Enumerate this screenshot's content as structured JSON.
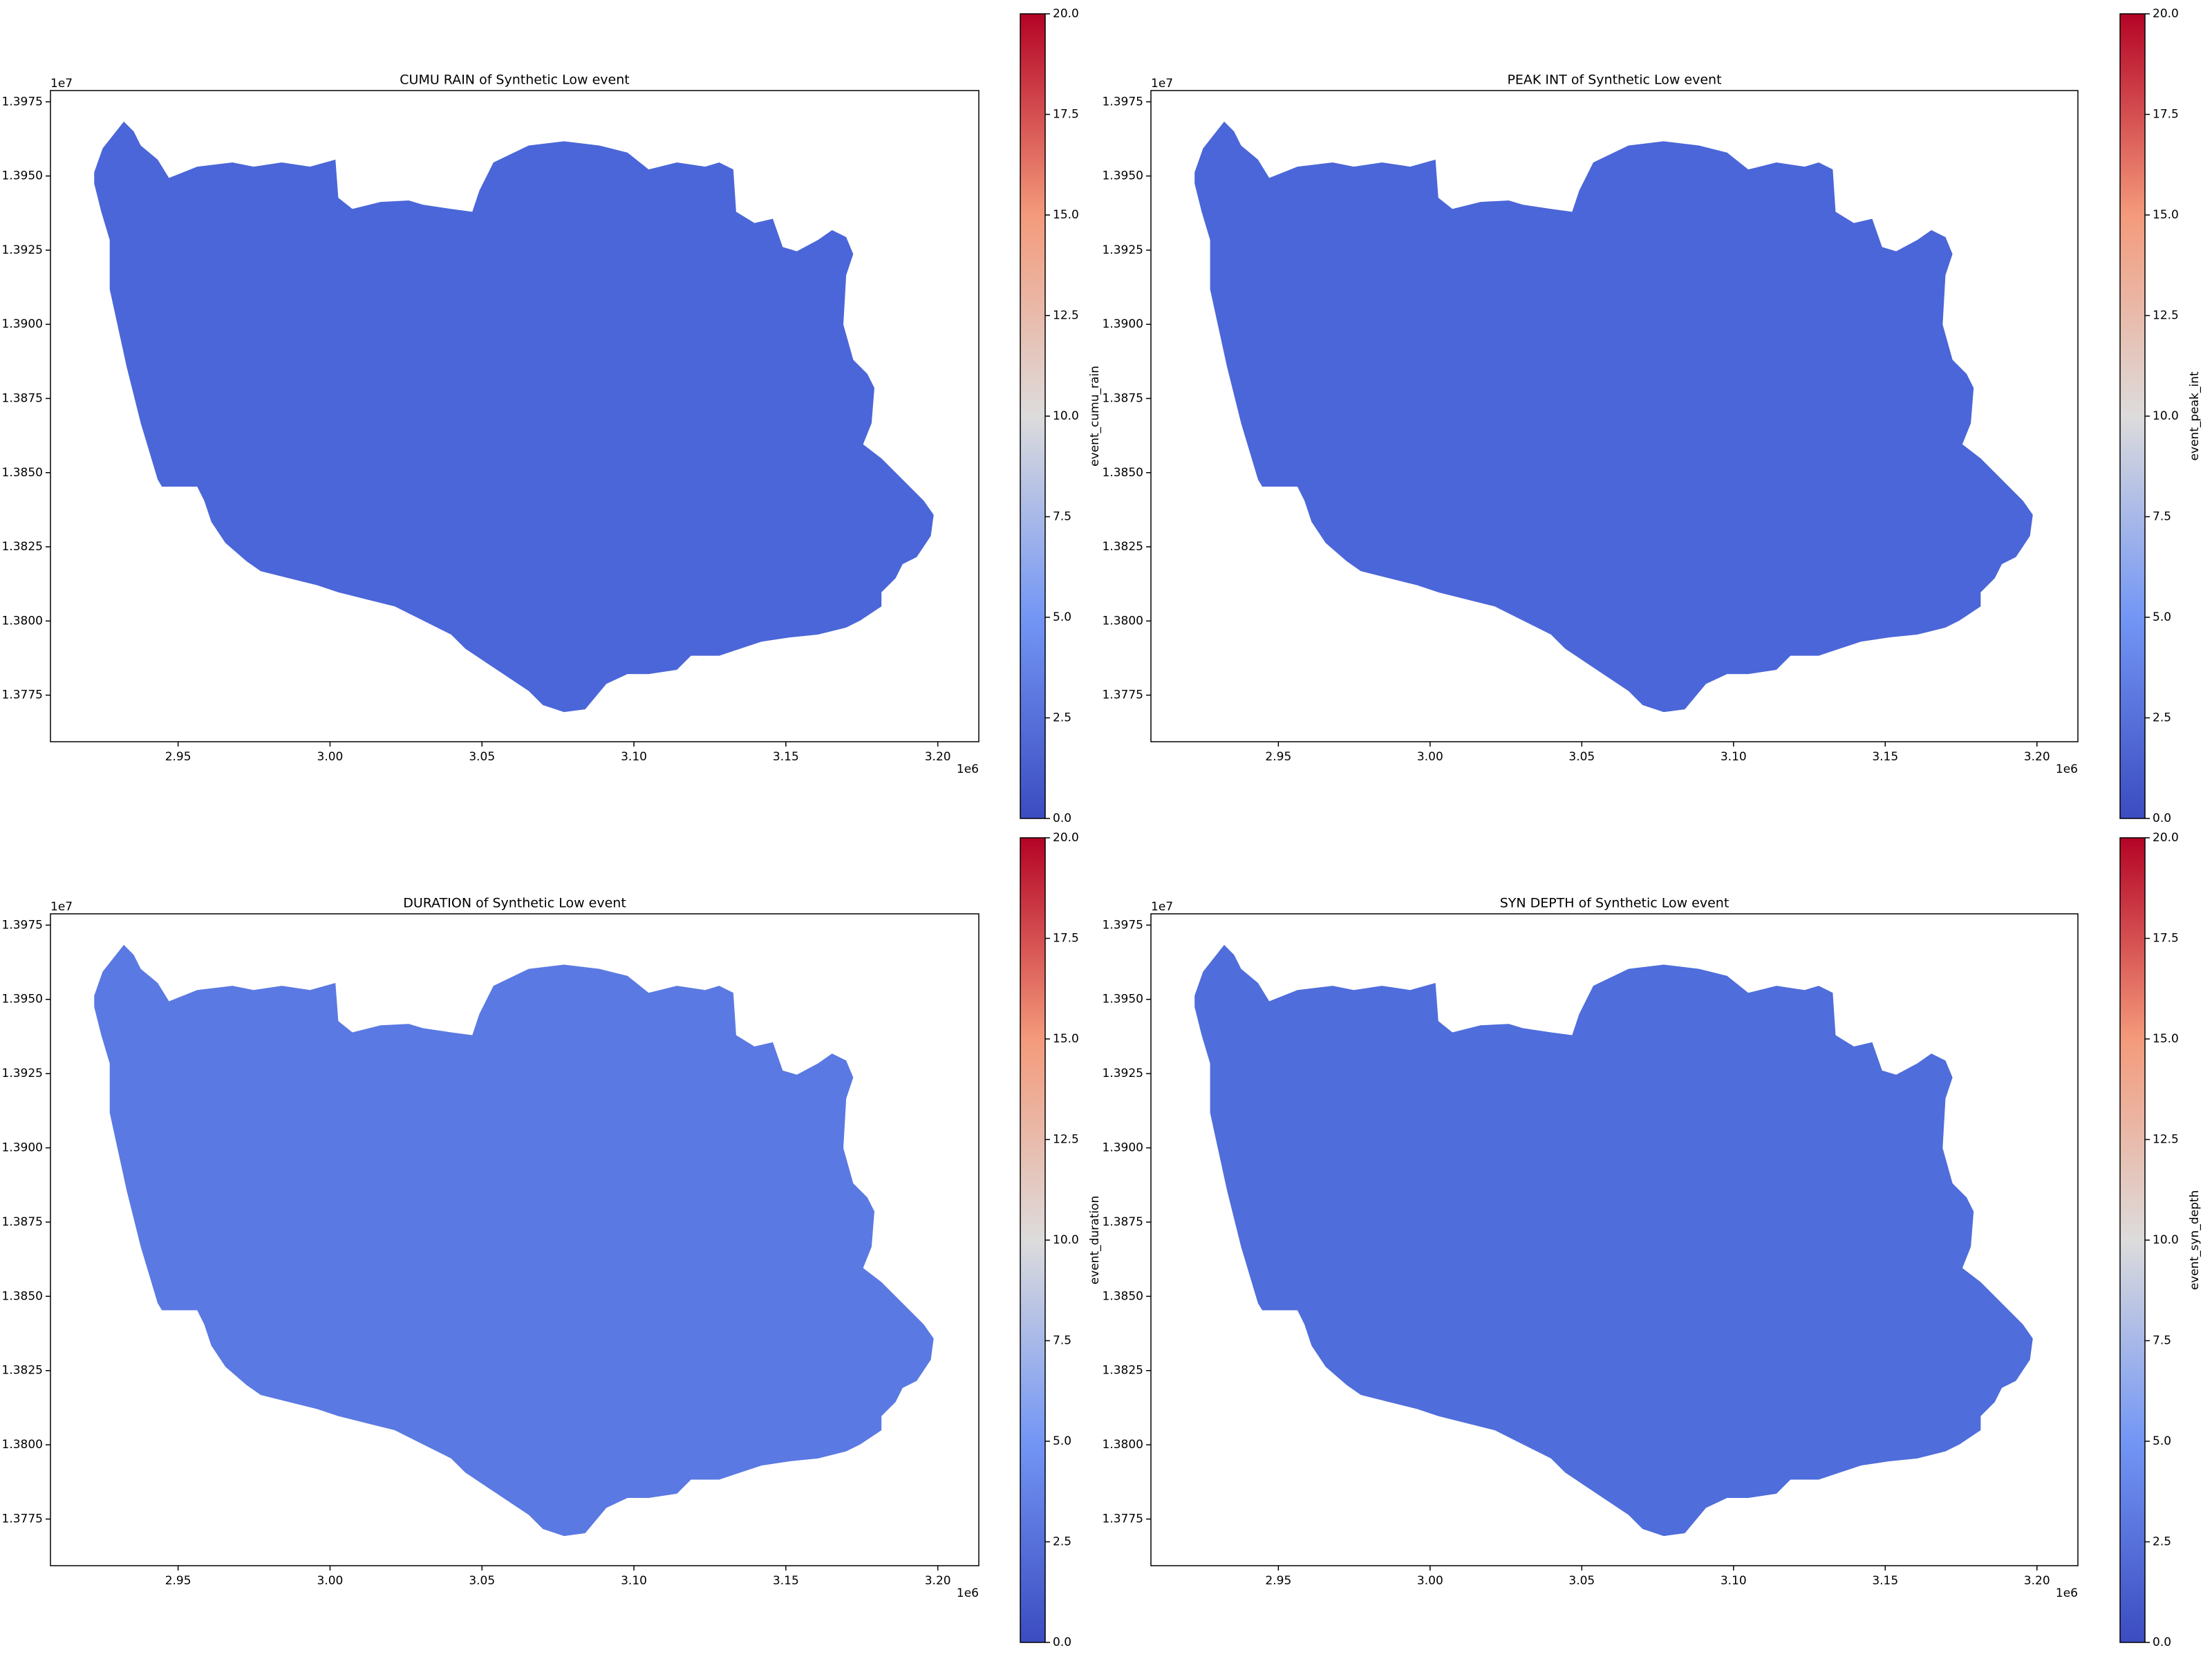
{
  "chart_data": [
    {
      "type": "map",
      "title": "CUMU RAIN of Synthetic Low event",
      "color": "#4b66d8",
      "xlim": [
        2.908,
        3.2135
      ],
      "ylim": [
        1.37593,
        1.39788
      ],
      "xticks": [
        2.95,
        {
          "value": 3,
          "label": "3.00"
        },
        3.05,
        {
          "value": 3.1,
          "label": "3.10"
        },
        3.15,
        {
          "value": 3.2,
          "label": "3.20"
        }
      ],
      "yticks": [
        1.3775,
        {
          "value": 1.38,
          "label": "1.3800"
        },
        1.3825,
        {
          "value": 1.385,
          "label": "1.3850"
        },
        1.3875,
        {
          "value": 1.39,
          "label": "1.3900"
        },
        1.3925,
        {
          "value": 1.395,
          "label": "1.3950"
        },
        1.3975
      ],
      "x_offset": "1e6",
      "y_offset": "1e7",
      "colorbar": {
        "label": "event_cumu_rain",
        "lim": [
          0,
          20
        ],
        "ticks": [
          {
            "value": 0,
            "label": "0.0"
          },
          2.5,
          {
            "value": 5,
            "label": "5.0"
          },
          7.5,
          {
            "value": 10,
            "label": "10.0"
          },
          12.5,
          {
            "value": 15,
            "label": "15.0"
          },
          17.5,
          {
            "value": 20,
            "label": "20.0"
          }
        ]
      }
    },
    {
      "type": "map",
      "title": "PEAK INT of Synthetic Low event",
      "color": "#4b66d8",
      "xlim": [
        2.908,
        3.2135
      ],
      "ylim": [
        1.37593,
        1.39788
      ],
      "xticks": [
        2.95,
        {
          "value": 3,
          "label": "3.00"
        },
        3.05,
        {
          "value": 3.1,
          "label": "3.10"
        },
        3.15,
        {
          "value": 3.2,
          "label": "3.20"
        }
      ],
      "yticks": [
        1.3775,
        {
          "value": 1.38,
          "label": "1.3800"
        },
        1.3825,
        {
          "value": 1.385,
          "label": "1.3850"
        },
        1.3875,
        {
          "value": 1.39,
          "label": "1.3900"
        },
        1.3925,
        {
          "value": 1.395,
          "label": "1.3950"
        },
        1.3975
      ],
      "x_offset": "1e6",
      "y_offset": "1e7",
      "colorbar": {
        "label": "event_peak_int",
        "lim": [
          0,
          20
        ],
        "ticks": [
          {
            "value": 0,
            "label": "0.0"
          },
          2.5,
          {
            "value": 5,
            "label": "5.0"
          },
          7.5,
          {
            "value": 10,
            "label": "10.0"
          },
          12.5,
          {
            "value": 15,
            "label": "15.0"
          },
          17.5,
          {
            "value": 20,
            "label": "20.0"
          }
        ]
      }
    },
    {
      "type": "map",
      "title": "DURATION of Synthetic Low event",
      "color": "#5a79e2",
      "xlim": [
        2.908,
        3.2135
      ],
      "ylim": [
        1.37593,
        1.39788
      ],
      "xticks": [
        2.95,
        {
          "value": 3,
          "label": "3.00"
        },
        3.05,
        {
          "value": 3.1,
          "label": "3.10"
        },
        3.15,
        {
          "value": 3.2,
          "label": "3.20"
        }
      ],
      "yticks": [
        1.3775,
        {
          "value": 1.38,
          "label": "1.3800"
        },
        1.3825,
        {
          "value": 1.385,
          "label": "1.3850"
        },
        1.3875,
        {
          "value": 1.39,
          "label": "1.3900"
        },
        1.3925,
        {
          "value": 1.395,
          "label": "1.3950"
        },
        1.3975
      ],
      "x_offset": "1e6",
      "y_offset": "1e7",
      "colorbar": {
        "label": "event_duration",
        "lim": [
          0,
          20
        ],
        "ticks": [
          {
            "value": 0,
            "label": "0.0"
          },
          2.5,
          {
            "value": 5,
            "label": "5.0"
          },
          7.5,
          {
            "value": 10,
            "label": "10.0"
          },
          12.5,
          {
            "value": 15,
            "label": "15.0"
          },
          17.5,
          {
            "value": 20,
            "label": "20.0"
          }
        ]
      }
    },
    {
      "type": "map",
      "title": "SYN DEPTH of Synthetic Low event",
      "color": "#4f6ddb",
      "xlim": [
        2.908,
        3.2135
      ],
      "ylim": [
        1.37593,
        1.39788
      ],
      "xticks": [
        2.95,
        {
          "value": 3,
          "label": "3.00"
        },
        3.05,
        {
          "value": 3.1,
          "label": "3.10"
        },
        3.15,
        {
          "value": 3.2,
          "label": "3.20"
        }
      ],
      "yticks": [
        1.3775,
        {
          "value": 1.38,
          "label": "1.3800"
        },
        1.3825,
        {
          "value": 1.385,
          "label": "1.3850"
        },
        1.3875,
        {
          "value": 1.39,
          "label": "1.3900"
        },
        1.3925,
        {
          "value": 1.395,
          "label": "1.3950"
        },
        1.3975
      ],
      "x_offset": "1e6",
      "y_offset": "1e7",
      "colorbar": {
        "label": "event_syn_depth",
        "lim": [
          0,
          20
        ],
        "ticks": [
          {
            "value": 0,
            "label": "0.0"
          },
          2.5,
          {
            "value": 5,
            "label": "5.0"
          },
          7.5,
          {
            "value": 10,
            "label": "10.0"
          },
          12.5,
          {
            "value": 15,
            "label": "15.0"
          },
          17.5,
          {
            "value": 20,
            "label": "20.0"
          }
        ]
      }
    }
  ]
}
